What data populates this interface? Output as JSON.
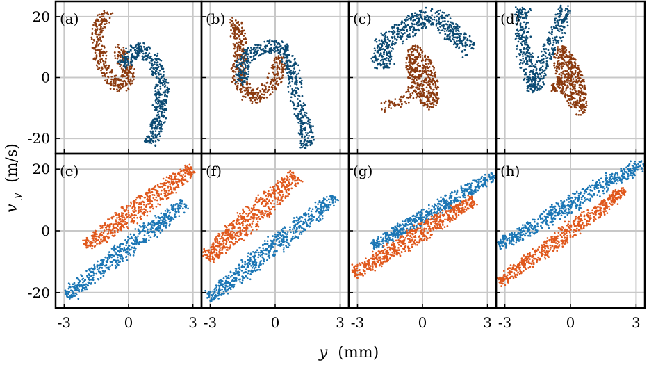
{
  "chart_data": {
    "type": "scatter",
    "layout": "2x4 grid of panels",
    "xlabel": {
      "var": "y",
      "unit": "(mm)"
    },
    "ylabel": {
      "var": "v",
      "sub": "y",
      "unit": "(m/s)"
    },
    "xlim": [
      -3.4,
      3.4
    ],
    "xticks": [
      -3,
      0,
      3
    ],
    "xtick_labels": [
      "-3",
      "0",
      "3"
    ],
    "rows": [
      {
        "ylim": [
          -25,
          25
        ],
        "yticks": [
          -20,
          0,
          20
        ],
        "ytick_labels": [
          "-20",
          "0",
          "20"
        ],
        "colors": {
          "series_1": "#8B3A0F",
          "series_2": "#0B4A73"
        }
      },
      {
        "ylim": [
          -25,
          25
        ],
        "yticks": [
          -20,
          0,
          20
        ],
        "ytick_labels": [
          "-20",
          "0",
          "20"
        ],
        "colors": {
          "series_1": "#E0581C",
          "series_2": "#1B76B5"
        }
      }
    ],
    "panels": [
      {
        "label": "(a)",
        "row": 0,
        "col": 0,
        "series": [
          {
            "name": "series_1",
            "shape": "band",
            "path": [
              [
                -1.0,
                22
              ],
              [
                -1.5,
                15
              ],
              [
                -1.3,
                5
              ],
              [
                -0.7,
                -2
              ],
              [
                -0.2,
                -3
              ],
              [
                0.1,
                2
              ],
              [
                -0.4,
                6
              ],
              [
                -0.3,
                10
              ]
            ],
            "width": 0.55,
            "count": 420
          },
          {
            "name": "series_2",
            "shape": "band",
            "path": [
              [
                -0.2,
                4
              ],
              [
                0.4,
                10
              ],
              [
                1.2,
                6
              ],
              [
                1.6,
                -3
              ],
              [
                1.4,
                -14
              ],
              [
                1.0,
                -22
              ]
            ],
            "width": 0.6,
            "count": 480
          }
        ]
      },
      {
        "label": "(b)",
        "row": 0,
        "col": 1,
        "series": [
          {
            "name": "series_1",
            "shape": "band",
            "path": [
              [
                -1.8,
                19
              ],
              [
                -1.6,
                10
              ],
              [
                -1.7,
                0
              ],
              [
                -1.2,
                -7
              ],
              [
                -0.3,
                -4
              ],
              [
                0.2,
                3
              ],
              [
                0.2,
                7
              ]
            ],
            "width": 0.6,
            "count": 460
          },
          {
            "name": "series_2",
            "shape": "band",
            "path": [
              [
                -1.5,
                -2
              ],
              [
                -1.5,
                6
              ],
              [
                -0.6,
                10
              ],
              [
                0.3,
                10
              ],
              [
                0.8,
                3
              ],
              [
                1.0,
                -7
              ],
              [
                1.4,
                -17
              ],
              [
                1.5,
                -23
              ]
            ],
            "width": 0.6,
            "count": 520
          }
        ]
      },
      {
        "label": "(c)",
        "row": 0,
        "col": 2,
        "series": [
          {
            "name": "series_2",
            "shape": "band",
            "path": [
              [
                -1.9,
                3
              ],
              [
                -1.8,
                12
              ],
              [
                -1.0,
                15
              ],
              [
                -0.3,
                18
              ],
              [
                0.3,
                20
              ],
              [
                1.0,
                18
              ],
              [
                2.2,
                9
              ]
            ],
            "width": 0.8,
            "count": 560
          },
          {
            "name": "series_1",
            "shape": "ellipse",
            "center": [
              0.0,
              0.0
            ],
            "axes": [
              0.65,
              11
            ],
            "angle": -0.03,
            "count": 420
          },
          {
            "name": "series_1",
            "shape": "band",
            "path": [
              [
                -1.8,
                -10
              ],
              [
                -1.0,
                -8
              ],
              [
                -0.4,
                -4
              ]
            ],
            "width": 0.5,
            "count": 60
          }
        ]
      },
      {
        "label": "(d)",
        "row": 0,
        "col": 3,
        "series": [
          {
            "name": "series_2",
            "shape": "band",
            "path": [
              [
                -2.2,
                23
              ],
              [
                -2.2,
                12
              ],
              [
                -1.9,
                2
              ],
              [
                -1.7,
                -4
              ],
              [
                -1.2,
                6
              ],
              [
                -0.6,
                15
              ],
              [
                -0.2,
                23
              ]
            ],
            "width": 0.6,
            "count": 520
          },
          {
            "name": "series_1",
            "shape": "ellipse",
            "center": [
              0.0,
              -1.0
            ],
            "axes": [
              0.6,
              12
            ],
            "angle": -0.03,
            "count": 430
          },
          {
            "name": "series_1",
            "shape": "band",
            "path": [
              [
                -0.8,
                -4
              ],
              [
                -0.4,
                -1
              ]
            ],
            "width": 0.35,
            "count": 40
          }
        ]
      },
      {
        "label": "(e)",
        "row": 1,
        "col": 0,
        "series": [
          {
            "name": "series_1",
            "shape": "ribbon",
            "y0": [
              -2.0,
              -5
            ],
            "y1": [
              3.0,
              20
            ],
            "width": 0.9,
            "count": 560
          },
          {
            "name": "series_2",
            "shape": "ribbon",
            "y0": [
              -2.9,
              -21
            ],
            "y1": [
              2.6,
              9
            ],
            "width": 0.75,
            "count": 560
          }
        ]
      },
      {
        "label": "(f)",
        "row": 1,
        "col": 1,
        "series": [
          {
            "name": "series_1",
            "shape": "ribbon",
            "y0": [
              -3.2,
              -9
            ],
            "y1": [
              1.0,
              18
            ],
            "width": 1.0,
            "count": 600
          },
          {
            "name": "series_2",
            "shape": "ribbon",
            "y0": [
              -3.1,
              -22
            ],
            "y1": [
              2.8,
              11
            ],
            "width": 0.8,
            "count": 600
          }
        ]
      },
      {
        "label": "(g)",
        "row": 1,
        "col": 2,
        "series": [
          {
            "name": "series_2",
            "shape": "ribbon",
            "y0": [
              -2.3,
              -5
            ],
            "y1": [
              3.3,
              18
            ],
            "width": 0.6,
            "count": 560
          },
          {
            "name": "series_1",
            "shape": "ribbon",
            "y0": [
              -3.2,
              -14
            ],
            "y1": [
              2.4,
              10
            ],
            "width": 0.75,
            "count": 600
          }
        ]
      },
      {
        "label": "(h)",
        "row": 1,
        "col": 3,
        "series": [
          {
            "name": "series_2",
            "shape": "ribbon",
            "y0": [
              -3.3,
              -5
            ],
            "y1": [
              3.3,
              22
            ],
            "width": 0.7,
            "count": 620
          },
          {
            "name": "series_1",
            "shape": "ribbon",
            "y0": [
              -3.3,
              -17
            ],
            "y1": [
              2.5,
              13
            ],
            "width": 0.65,
            "count": 620
          }
        ]
      }
    ]
  }
}
